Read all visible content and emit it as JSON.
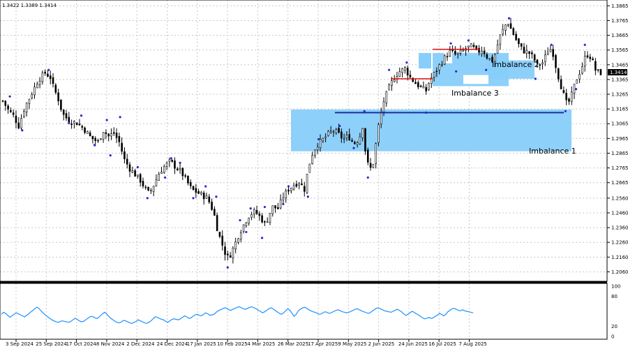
{
  "header": {
    "ohlc_text": "1.3422 1.3389 1.3414"
  },
  "price_marker": {
    "label": "1.3414",
    "value": 1.3414
  },
  "colors": {
    "candle": "#000000",
    "zone_fill": "#87cefa",
    "zone_white": "#ffffff",
    "support_line": "#1c2fa0",
    "range_line": "#e01010",
    "fractal": "#1f2fd0",
    "rsi_line": "#1e90ff",
    "grid": "#c8c8c8"
  },
  "chart_data": [
    {
      "type": "candlestick",
      "title": "",
      "y_axis": {
        "min": 1.201,
        "max": 1.3895,
        "ticks": [
          "1.3865",
          "1.3765",
          "1.3665",
          "1.3565",
          "1.3465",
          "1.3365",
          "1.3265",
          "1.3165",
          "1.3065",
          "1.2965",
          "1.2865",
          "1.2765",
          "1.2665",
          "1.2560",
          "1.2460",
          "1.2360",
          "1.2260",
          "1.2160",
          "1.2060"
        ]
      },
      "x_axis": {
        "labels": [
          "3 Sep 2024",
          "25 Sep 2024",
          "17 Oct 2024",
          "8 Nov 2024",
          "2 Dec 2024",
          "24 Dec 2024",
          "17 Jan 2025",
          "10 Feb 2025",
          "4 Mar 2025",
          "26 Mar 2025",
          "17 Apr 2025",
          "9 May 2025",
          "2 Jun 2025",
          "24 Jun 2025",
          "16 Jul 2025",
          "7 Aug 2025"
        ]
      },
      "grid": true,
      "series": [
        {
          "close_path": [
            [
              0,
              1.322
            ],
            [
              6,
              1.316
            ],
            [
              12,
              1.312
            ],
            [
              18,
              1.305
            ],
            [
              25,
              1.318
            ],
            [
              32,
              1.326
            ],
            [
              40,
              1.336
            ],
            [
              48,
              1.341
            ],
            [
              54,
              1.338
            ],
            [
              58,
              1.33
            ],
            [
              62,
              1.325
            ],
            [
              68,
              1.313
            ],
            [
              76,
              1.308
            ],
            [
              84,
              1.307
            ],
            [
              92,
              1.303
            ],
            [
              100,
              1.297
            ],
            [
              108,
              1.294
            ],
            [
              114,
              1.302
            ],
            [
              120,
              1.298
            ],
            [
              126,
              1.3
            ],
            [
              132,
              1.294
            ],
            [
              138,
              1.282
            ],
            [
              144,
              1.276
            ],
            [
              150,
              1.272
            ],
            [
              156,
              1.268
            ],
            [
              162,
              1.262
            ],
            [
              166,
              1.259
            ],
            [
              172,
              1.266
            ],
            [
              178,
              1.274
            ],
            [
              184,
              1.278
            ],
            [
              190,
              1.281
            ],
            [
              196,
              1.277
            ],
            [
              202,
              1.274
            ],
            [
              208,
              1.268
            ],
            [
              214,
              1.262
            ],
            [
              220,
              1.26
            ],
            [
              226,
              1.258
            ],
            [
              232,
              1.256
            ],
            [
              236,
              1.251
            ],
            [
              240,
              1.244
            ],
            [
              244,
              1.233
            ],
            [
              248,
              1.226
            ],
            [
              252,
              1.219
            ],
            [
              256,
              1.215
            ],
            [
              262,
              1.223
            ],
            [
              268,
              1.232
            ],
            [
              274,
              1.239
            ],
            [
              280,
              1.245
            ],
            [
              286,
              1.247
            ],
            [
              292,
              1.243
            ],
            [
              298,
              1.238
            ],
            [
              302,
              1.245
            ],
            [
              306,
              1.25
            ],
            [
              312,
              1.249
            ],
            [
              318,
              1.257
            ],
            [
              324,
              1.262
            ],
            [
              330,
              1.265
            ],
            [
              336,
              1.267
            ],
            [
              342,
              1.262
            ],
            [
              346,
              1.275
            ],
            [
              350,
              1.285
            ],
            [
              356,
              1.292
            ],
            [
              362,
              1.295
            ],
            [
              368,
              1.299
            ],
            [
              374,
              1.302
            ],
            [
              380,
              1.3
            ],
            [
              386,
              1.296
            ],
            [
              392,
              1.298
            ],
            [
              398,
              1.293
            ],
            [
              404,
              1.296
            ],
            [
              408,
              1.305
            ],
            [
              412,
              1.283
            ],
            [
              416,
              1.275
            ],
            [
              420,
              1.28
            ],
            [
              426,
              1.305
            ],
            [
              432,
              1.322
            ],
            [
              438,
              1.331
            ],
            [
              444,
              1.338
            ],
            [
              450,
              1.342
            ],
            [
              456,
              1.344
            ],
            [
              462,
              1.338
            ],
            [
              468,
              1.334
            ],
            [
              474,
              1.331
            ],
            [
              480,
              1.329
            ],
            [
              484,
              1.336
            ],
            [
              490,
              1.341
            ],
            [
              496,
              1.347
            ],
            [
              502,
              1.352
            ],
            [
              508,
              1.356
            ],
            [
              514,
              1.353
            ],
            [
              520,
              1.355
            ],
            [
              526,
              1.358
            ],
            [
              532,
              1.359
            ],
            [
              538,
              1.355
            ],
            [
              544,
              1.357
            ],
            [
              550,
              1.351
            ],
            [
              556,
              1.349
            ],
            [
              560,
              1.358
            ],
            [
              564,
              1.366
            ],
            [
              568,
              1.371
            ],
            [
              572,
              1.376
            ],
            [
              576,
              1.371
            ],
            [
              580,
              1.366
            ],
            [
              584,
              1.361
            ],
            [
              590,
              1.356
            ],
            [
              596,
              1.355
            ],
            [
              602,
              1.351
            ],
            [
              606,
              1.346
            ],
            [
              612,
              1.348
            ],
            [
              616,
              1.353
            ],
            [
              620,
              1.358
            ],
            [
              624,
              1.354
            ],
            [
              628,
              1.343
            ],
            [
              632,
              1.334
            ],
            [
              636,
              1.326
            ],
            [
              640,
              1.319
            ],
            [
              644,
              1.324
            ],
            [
              650,
              1.336
            ],
            [
              656,
              1.344
            ],
            [
              660,
              1.351
            ],
            [
              664,
              1.354
            ],
            [
              668,
              1.35
            ],
            [
              672,
              1.343
            ],
            [
              676,
              1.341
            ],
            [
              679,
              1.341
            ]
          ],
          "up_fractals": [
            [
              8,
              1.325
            ],
            [
              52,
              1.343
            ],
            [
              89,
              1.312
            ],
            [
              118,
              1.309
            ],
            [
              133,
              1.311
            ],
            [
              153,
              1.277
            ],
            [
              191,
              1.283
            ],
            [
              201,
              1.28
            ],
            [
              230,
              1.264
            ],
            [
              242,
              1.257
            ],
            [
              269,
              1.241
            ],
            [
              281,
              1.249
            ],
            [
              297,
              1.25
            ],
            [
              324,
              1.264
            ],
            [
              358,
              1.296
            ],
            [
              382,
              1.305
            ],
            [
              410,
              1.315
            ],
            [
              438,
              1.343
            ],
            [
              458,
              1.348
            ],
            [
              508,
              1.361
            ],
            [
              528,
              1.363
            ],
            [
              574,
              1.378
            ],
            [
              622,
              1.36
            ],
            [
              660,
              1.36
            ]
          ],
          "down_fractals": [
            [
              22,
              1.302
            ],
            [
              75,
              1.307
            ],
            [
              104,
              1.292
            ],
            [
              122,
              1.285
            ],
            [
              164,
              1.256
            ],
            [
              184,
              1.27
            ],
            [
              216,
              1.256
            ],
            [
              255,
              1.209
            ],
            [
              276,
              1.233
            ],
            [
              294,
              1.229
            ],
            [
              318,
              1.252
            ],
            [
              346,
              1.257
            ],
            [
              398,
              1.29
            ],
            [
              414,
              1.27
            ],
            [
              480,
              1.314
            ],
            [
              514,
              1.342
            ],
            [
              548,
              1.343
            ],
            [
              604,
              1.337
            ],
            [
              638,
              1.315
            ],
            [
              650,
              1.33
            ]
          ]
        }
      ],
      "zones": [
        {
          "name": "Imbalance 1",
          "y_top": 1.3162,
          "y_bottom": 1.2878
        },
        {
          "name": "Imbalance 2",
          "y_top": 1.3495,
          "y_bottom": 1.337
        },
        {
          "name": "Imbalance 3",
          "y_top": 1.3545,
          "y_bottom": 1.332
        }
      ],
      "levels": [
        {
          "kind": "support",
          "value": 1.314
        },
        {
          "kind": "range_high",
          "value": 1.357
        },
        {
          "kind": "range_low",
          "value": 1.337
        }
      ]
    },
    {
      "type": "line",
      "title": "",
      "y_axis": {
        "min": 0,
        "max": 100,
        "ticks": [
          "100",
          "80",
          "20",
          "0"
        ]
      },
      "values": [
        44,
        48,
        46,
        42,
        38,
        41,
        44,
        47,
        45,
        43,
        41,
        39,
        42,
        45,
        49,
        52,
        56,
        58,
        55,
        50,
        46,
        42,
        39,
        36,
        33,
        31,
        29,
        28,
        30,
        31,
        30,
        29,
        28,
        30,
        33,
        36,
        34,
        31,
        29,
        30,
        33,
        36,
        39,
        40,
        38,
        36,
        37,
        41,
        45,
        48,
        45,
        40,
        36,
        33,
        30,
        28,
        27,
        29,
        32,
        31,
        29,
        27,
        26,
        28,
        30,
        33,
        31,
        29,
        27,
        26,
        28,
        31,
        35,
        39,
        38,
        36,
        34,
        33,
        30,
        28,
        31,
        34,
        35,
        34,
        33,
        35,
        38,
        41,
        39,
        36,
        37,
        40,
        43,
        44,
        42,
        41,
        44,
        47,
        45,
        42,
        43,
        44,
        48,
        51,
        53,
        55,
        57,
        56,
        53,
        52,
        54,
        56,
        58,
        59,
        57,
        55,
        54,
        56,
        58,
        59,
        57,
        55,
        52,
        50,
        47,
        49,
        52,
        55,
        57,
        55,
        52,
        49,
        46,
        44,
        47,
        51,
        55,
        52,
        46,
        40,
        44,
        51,
        54,
        57,
        58,
        56,
        53,
        51,
        49,
        48,
        46,
        44,
        45,
        48,
        49,
        47,
        46,
        48,
        50,
        52,
        53,
        51,
        49,
        48,
        47,
        48,
        50,
        52,
        54,
        55,
        53,
        51,
        49,
        48,
        46,
        47,
        50,
        53,
        56,
        57,
        55,
        53,
        51,
        50,
        49,
        48,
        50,
        52,
        54,
        52,
        49,
        45,
        42,
        44,
        47,
        50,
        48,
        45,
        43,
        40,
        37,
        35,
        36,
        38,
        36,
        37,
        40,
        42,
        46,
        44,
        41,
        44,
        49,
        52,
        55,
        56,
        54,
        52,
        51,
        53,
        51,
        50,
        49,
        48,
        47
      ]
    }
  ]
}
